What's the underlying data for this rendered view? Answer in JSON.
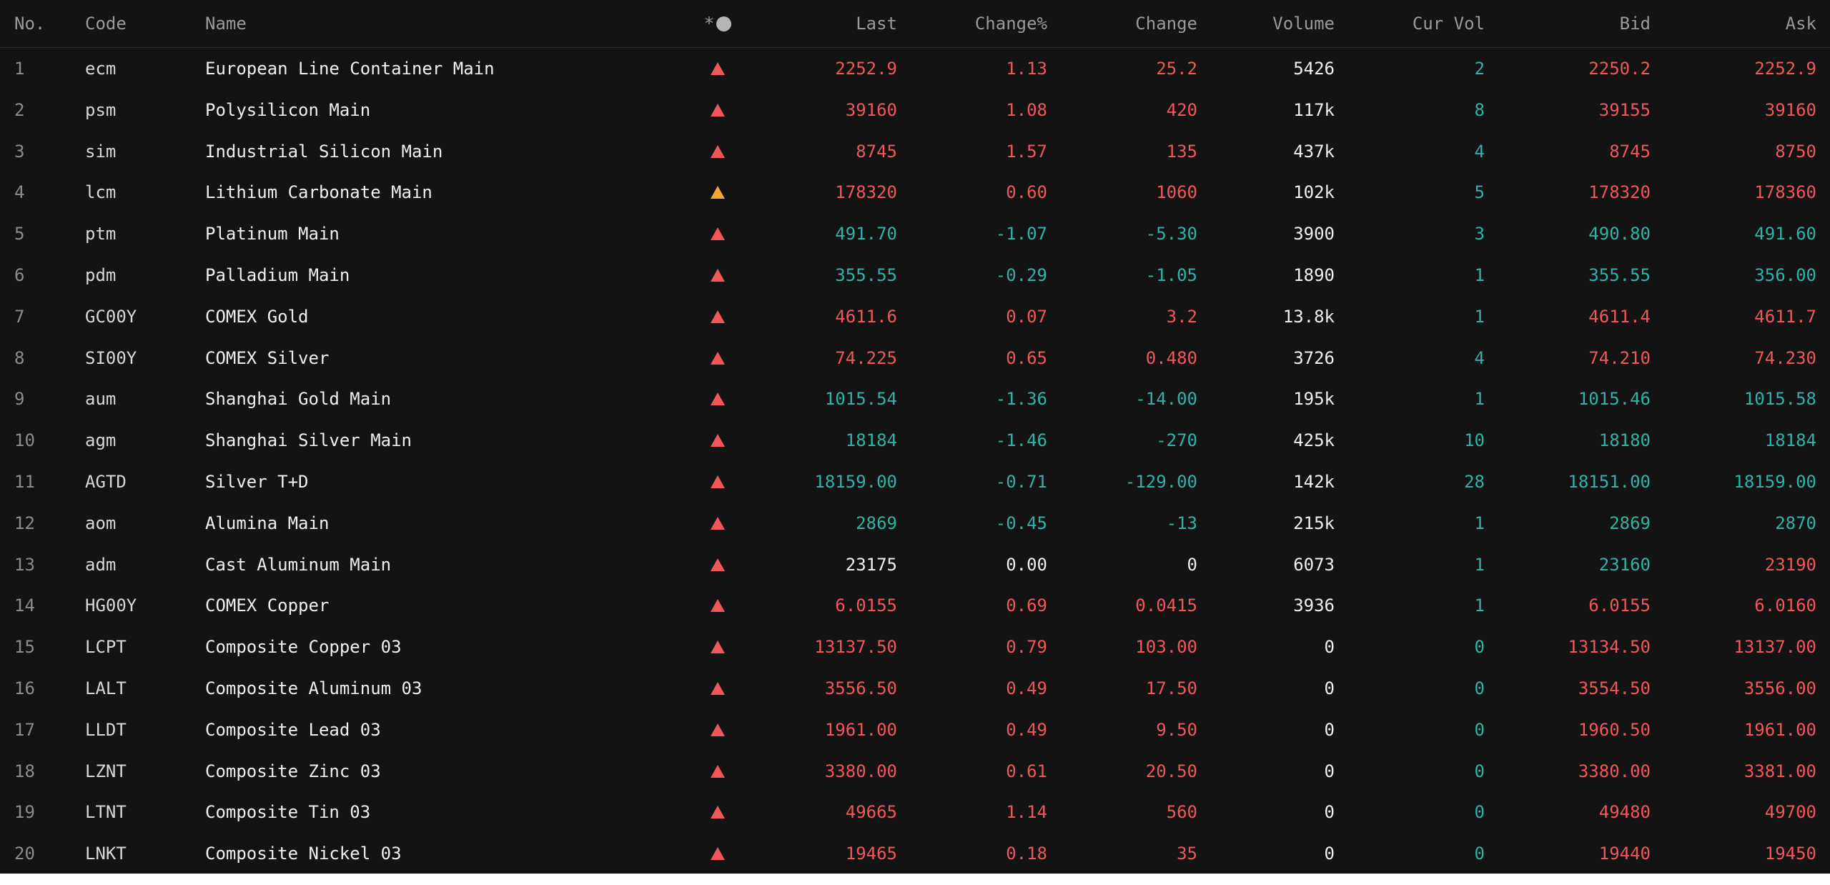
{
  "colors": {
    "background": "#131313",
    "header_text": "#9a9a9a",
    "up": "#f0575a",
    "down": "#2fb3a8",
    "flat": "#f0f0f0",
    "flag_red": "#f0575a",
    "flag_amber": "#f0a92d",
    "footer": "#ffffff"
  },
  "table": {
    "columns": {
      "no": "No.",
      "code": "Code",
      "name": "Name",
      "flag": "*",
      "flag_icon": "circle-icon",
      "last": "Last",
      "change_pct": "Change%",
      "change": "Change",
      "volume": "Volume",
      "cur_vol": "Cur Vol",
      "bid": "Bid",
      "ask": "Ask"
    },
    "rows": [
      {
        "no": "1",
        "code": "ecm",
        "name": "European Line Container Main",
        "flag": "red",
        "last": "2252.9",
        "change_pct": "1.13",
        "change": "25.2",
        "volume": "5426",
        "cur_vol": "2",
        "bid": "2250.2",
        "ask": "2252.9",
        "dir": "up",
        "bid_dir": "up",
        "ask_dir": "up"
      },
      {
        "no": "2",
        "code": "psm",
        "name": "Polysilicon Main",
        "flag": "red",
        "last": "39160",
        "change_pct": "1.08",
        "change": "420",
        "volume": "117k",
        "cur_vol": "8",
        "bid": "39155",
        "ask": "39160",
        "dir": "up",
        "bid_dir": "up",
        "ask_dir": "up"
      },
      {
        "no": "3",
        "code": "sim",
        "name": "Industrial Silicon Main",
        "flag": "red",
        "last": "8745",
        "change_pct": "1.57",
        "change": "135",
        "volume": "437k",
        "cur_vol": "4",
        "bid": "8745",
        "ask": "8750",
        "dir": "up",
        "bid_dir": "up",
        "ask_dir": "up"
      },
      {
        "no": "4",
        "code": "lcm",
        "name": "Lithium Carbonate Main",
        "flag": "amber",
        "last": "178320",
        "change_pct": "0.60",
        "change": "1060",
        "volume": "102k",
        "cur_vol": "5",
        "bid": "178320",
        "ask": "178360",
        "dir": "up",
        "bid_dir": "up",
        "ask_dir": "up"
      },
      {
        "no": "5",
        "code": "ptm",
        "name": "Platinum Main",
        "flag": "red",
        "last": "491.70",
        "change_pct": "-1.07",
        "change": "-5.30",
        "volume": "3900",
        "cur_vol": "3",
        "bid": "490.80",
        "ask": "491.60",
        "dir": "down",
        "bid_dir": "down",
        "ask_dir": "down"
      },
      {
        "no": "6",
        "code": "pdm",
        "name": "Palladium Main",
        "flag": "red",
        "last": "355.55",
        "change_pct": "-0.29",
        "change": "-1.05",
        "volume": "1890",
        "cur_vol": "1",
        "bid": "355.55",
        "ask": "356.00",
        "dir": "down",
        "bid_dir": "down",
        "ask_dir": "down"
      },
      {
        "no": "7",
        "code": "GC00Y",
        "name": "COMEX Gold",
        "flag": "red",
        "last": "4611.6",
        "change_pct": "0.07",
        "change": "3.2",
        "volume": "13.8k",
        "cur_vol": "1",
        "bid": "4611.4",
        "ask": "4611.7",
        "dir": "up",
        "bid_dir": "up",
        "ask_dir": "up"
      },
      {
        "no": "8",
        "code": "SI00Y",
        "name": "COMEX Silver",
        "flag": "red",
        "last": "74.225",
        "change_pct": "0.65",
        "change": "0.480",
        "volume": "3726",
        "cur_vol": "4",
        "bid": "74.210",
        "ask": "74.230",
        "dir": "up",
        "bid_dir": "up",
        "ask_dir": "up"
      },
      {
        "no": "9",
        "code": "aum",
        "name": "Shanghai Gold Main",
        "flag": "red",
        "last": "1015.54",
        "change_pct": "-1.36",
        "change": "-14.00",
        "volume": "195k",
        "cur_vol": "1",
        "bid": "1015.46",
        "ask": "1015.58",
        "dir": "down",
        "bid_dir": "down",
        "ask_dir": "down"
      },
      {
        "no": "10",
        "code": "agm",
        "name": "Shanghai Silver Main",
        "flag": "red",
        "last": "18184",
        "change_pct": "-1.46",
        "change": "-270",
        "volume": "425k",
        "cur_vol": "10",
        "bid": "18180",
        "ask": "18184",
        "dir": "down",
        "bid_dir": "down",
        "ask_dir": "down"
      },
      {
        "no": "11",
        "code": "AGTD",
        "name": "Silver T+D",
        "flag": "red",
        "last": "18159.00",
        "change_pct": "-0.71",
        "change": "-129.00",
        "volume": "142k",
        "cur_vol": "28",
        "bid": "18151.00",
        "ask": "18159.00",
        "dir": "down",
        "bid_dir": "down",
        "ask_dir": "down"
      },
      {
        "no": "12",
        "code": "aom",
        "name": "Alumina Main",
        "flag": "red",
        "last": "2869",
        "change_pct": "-0.45",
        "change": "-13",
        "volume": "215k",
        "cur_vol": "1",
        "bid": "2869",
        "ask": "2870",
        "dir": "down",
        "bid_dir": "down",
        "ask_dir": "down"
      },
      {
        "no": "13",
        "code": "adm",
        "name": "Cast Aluminum Main",
        "flag": "red",
        "last": "23175",
        "change_pct": "0.00",
        "change": "0",
        "volume": "6073",
        "cur_vol": "1",
        "bid": "23160",
        "ask": "23190",
        "dir": "flat",
        "bid_dir": "down",
        "ask_dir": "up"
      },
      {
        "no": "14",
        "code": "HG00Y",
        "name": "COMEX Copper",
        "flag": "red",
        "last": "6.0155",
        "change_pct": "0.69",
        "change": "0.0415",
        "volume": "3936",
        "cur_vol": "1",
        "bid": "6.0155",
        "ask": "6.0160",
        "dir": "up",
        "bid_dir": "up",
        "ask_dir": "up"
      },
      {
        "no": "15",
        "code": "LCPT",
        "name": "Composite Copper 03",
        "flag": "red",
        "last": "13137.50",
        "change_pct": "0.79",
        "change": "103.00",
        "volume": "0",
        "cur_vol": "0",
        "bid": "13134.50",
        "ask": "13137.00",
        "dir": "up",
        "bid_dir": "up",
        "ask_dir": "up"
      },
      {
        "no": "16",
        "code": "LALT",
        "name": "Composite Aluminum 03",
        "flag": "red",
        "last": "3556.50",
        "change_pct": "0.49",
        "change": "17.50",
        "volume": "0",
        "cur_vol": "0",
        "bid": "3554.50",
        "ask": "3556.00",
        "dir": "up",
        "bid_dir": "up",
        "ask_dir": "up"
      },
      {
        "no": "17",
        "code": "LLDT",
        "name": "Composite Lead 03",
        "flag": "red",
        "last": "1961.00",
        "change_pct": "0.49",
        "change": "9.50",
        "volume": "0",
        "cur_vol": "0",
        "bid": "1960.50",
        "ask": "1961.00",
        "dir": "up",
        "bid_dir": "up",
        "ask_dir": "up"
      },
      {
        "no": "18",
        "code": "LZNT",
        "name": "Composite Zinc 03",
        "flag": "red",
        "last": "3380.00",
        "change_pct": "0.61",
        "change": "20.50",
        "volume": "0",
        "cur_vol": "0",
        "bid": "3380.00",
        "ask": "3381.00",
        "dir": "up",
        "bid_dir": "up",
        "ask_dir": "up"
      },
      {
        "no": "19",
        "code": "LTNT",
        "name": "Composite Tin 03",
        "flag": "red",
        "last": "49665",
        "change_pct": "1.14",
        "change": "560",
        "volume": "0",
        "cur_vol": "0",
        "bid": "49480",
        "ask": "49700",
        "dir": "up",
        "bid_dir": "up",
        "ask_dir": "up"
      },
      {
        "no": "20",
        "code": "LNKT",
        "name": "Composite Nickel 03",
        "flag": "red",
        "last": "19465",
        "change_pct": "0.18",
        "change": "35",
        "volume": "0",
        "cur_vol": "0",
        "bid": "19440",
        "ask": "19450",
        "dir": "up",
        "bid_dir": "up",
        "ask_dir": "up"
      }
    ]
  }
}
